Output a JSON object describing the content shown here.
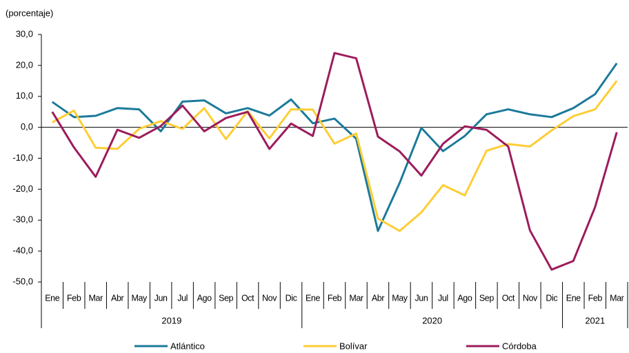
{
  "chart_data": {
    "type": "line",
    "y_label": "(porcentaje)",
    "category_groups": [
      {
        "label": "2019",
        "categories": [
          "Ene",
          "Feb",
          "Mar",
          "Abr",
          "May",
          "Jun",
          "Jul",
          "Ago",
          "Sep",
          "Oct",
          "Nov",
          "Dic"
        ]
      },
      {
        "label": "2020",
        "categories": [
          "Ene",
          "Feb",
          "Mar",
          "Abr",
          "May",
          "Jun",
          "Jul",
          "Ago",
          "Sep",
          "Oct",
          "Nov",
          "Dic"
        ]
      },
      {
        "label": "2021",
        "categories": [
          "Ene",
          "Feb",
          "Mar"
        ]
      }
    ],
    "series": [
      {
        "name": "Atlántico",
        "color": "#1b7a9a",
        "values": [
          8.2,
          3.3,
          3.7,
          6.2,
          5.8,
          -1.3,
          8.3,
          8.7,
          4.5,
          6.2,
          3.8,
          9.0,
          1.3,
          2.8,
          -3.7,
          -33.5,
          -18.0,
          -0.2,
          -7.7,
          -2.8,
          4.2,
          5.8,
          4.2,
          3.3,
          6.2,
          10.7,
          20.7
        ]
      },
      {
        "name": "Bolívar",
        "color": "#fecd34",
        "values": [
          1.6,
          5.4,
          -6.6,
          -7.0,
          -0.5,
          2.0,
          -0.5,
          6.2,
          -3.8,
          5.2,
          -3.6,
          5.8,
          5.7,
          -5.3,
          -2.0,
          -29.5,
          -33.5,
          -27.5,
          -18.7,
          -22.0,
          -7.6,
          -5.4,
          -6.2,
          -1.0,
          3.6,
          5.8,
          15.0
        ]
      },
      {
        "name": "Córdoba",
        "color": "#9c1c5b",
        "values": [
          5.0,
          -6.5,
          -16.0,
          -0.8,
          -3.4,
          0.4,
          7.0,
          -1.3,
          3.0,
          5.0,
          -7.0,
          1.2,
          -2.8,
          24.0,
          22.3,
          -3.0,
          -7.8,
          -15.6,
          -5.3,
          0.3,
          -0.8,
          -6.2,
          -33.3,
          -46.0,
          -43.2,
          -25.8,
          -1.6
        ]
      }
    ],
    "ylim": [
      -50,
      30
    ],
    "yticks": [
      {
        "value": -50,
        "label": "-50,0"
      },
      {
        "value": -40,
        "label": "-40,0"
      },
      {
        "value": -30,
        "label": "-30,0"
      },
      {
        "value": -20,
        "label": "-20,0"
      },
      {
        "value": -10,
        "label": "-10,0"
      },
      {
        "value": 0,
        "label": "0,0"
      },
      {
        "value": 10,
        "label": "10,0"
      },
      {
        "value": 20,
        "label": "20,0"
      },
      {
        "value": 30,
        "label": "30,0"
      }
    ]
  }
}
